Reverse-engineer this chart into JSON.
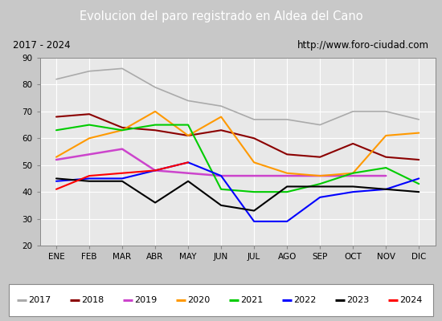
{
  "title": "Evolucion del paro registrado en Aldea del Cano",
  "subtitle_left": "2017 - 2024",
  "subtitle_right": "http://www.foro-ciudad.com",
  "x_labels": [
    "ENE",
    "FEB",
    "MAR",
    "ABR",
    "MAY",
    "JUN",
    "JUL",
    "AGO",
    "SEP",
    "OCT",
    "NOV",
    "DIC"
  ],
  "ylim": [
    20,
    90
  ],
  "yticks": [
    20,
    30,
    40,
    50,
    60,
    70,
    80,
    90
  ],
  "series": {
    "2017": {
      "values": [
        82,
        85,
        86,
        79,
        74,
        72,
        67,
        67,
        65,
        70,
        70,
        67
      ],
      "color": "#aaaaaa",
      "lw": 1.2
    },
    "2018": {
      "values": [
        68,
        69,
        64,
        63,
        61,
        63,
        60,
        54,
        53,
        58,
        53,
        52
      ],
      "color": "#8b0000",
      "lw": 1.5
    },
    "2019": {
      "values": [
        52,
        54,
        56,
        48,
        47,
        46,
        46,
        46,
        46,
        46,
        46,
        null
      ],
      "color": "#cc44cc",
      "lw": 1.8
    },
    "2020": {
      "values": [
        53,
        60,
        63,
        70,
        61,
        68,
        51,
        47,
        46,
        47,
        61,
        62
      ],
      "color": "#ff9900",
      "lw": 1.5
    },
    "2021": {
      "values": [
        63,
        65,
        63,
        65,
        65,
        41,
        40,
        40,
        43,
        47,
        49,
        43
      ],
      "color": "#00cc00",
      "lw": 1.5
    },
    "2022": {
      "values": [
        44,
        45,
        45,
        48,
        51,
        46,
        29,
        29,
        38,
        40,
        41,
        45
      ],
      "color": "#0000ff",
      "lw": 1.5
    },
    "2023": {
      "values": [
        45,
        44,
        44,
        36,
        44,
        35,
        33,
        42,
        42,
        42,
        41,
        40
      ],
      "color": "#000000",
      "lw": 1.5
    },
    "2024": {
      "values": [
        41,
        46,
        47,
        48,
        51,
        null,
        null,
        null,
        null,
        null,
        null,
        null
      ],
      "color": "#ff0000",
      "lw": 1.5
    }
  },
  "fig_bg": "#c8c8c8",
  "plot_bg": "#e8e8e8",
  "title_bg": "#5080c0",
  "title_color": "white",
  "subtitle_bg": "#ffffff",
  "legend_bg": "#ffffff",
  "grid_color": "#ffffff"
}
